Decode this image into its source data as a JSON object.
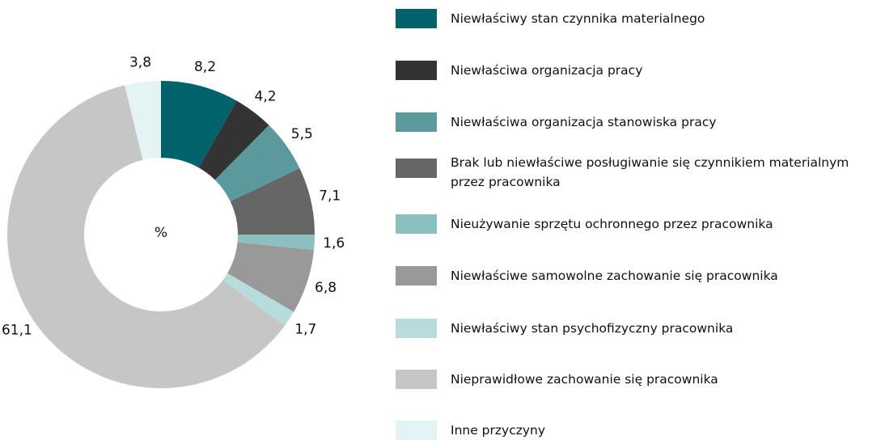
{
  "chart_data": {
    "type": "donut",
    "center_label": "%",
    "categories": [
      "Niewłaściwy stan czynnika materialnego",
      "Niewłaściwa organizacja pracy",
      "Niewłaściwa organizacja stanowiska pracy",
      "Brak lub niewłaściwe posługiwanie się czynnikiem materialnym przez pracownika",
      "Nieużywanie sprzętu ochronnego przez pracownika",
      "Niewłaściwe samowolne zachowanie się pracownika",
      "Niewłaściwy stan psychofizyczny pracownika",
      "Nieprawidłowe zachowanie się pracownika",
      "Inne przyczyny"
    ],
    "values": [
      8.2,
      4.2,
      5.5,
      7.1,
      1.6,
      6.8,
      1.7,
      61.1,
      3.8
    ],
    "value_labels": [
      "8,2",
      "4,2",
      "5,5",
      "7,1",
      "1,6",
      "6,8",
      "1,7",
      "61,1",
      "3,8"
    ],
    "colors": [
      "#00626b",
      "#333333",
      "#5a9a9c",
      "#666666",
      "#8bbfc0",
      "#999999",
      "#b8dcdc",
      "#c6c6c6",
      "#e4f3f4"
    ],
    "legend": "right"
  }
}
